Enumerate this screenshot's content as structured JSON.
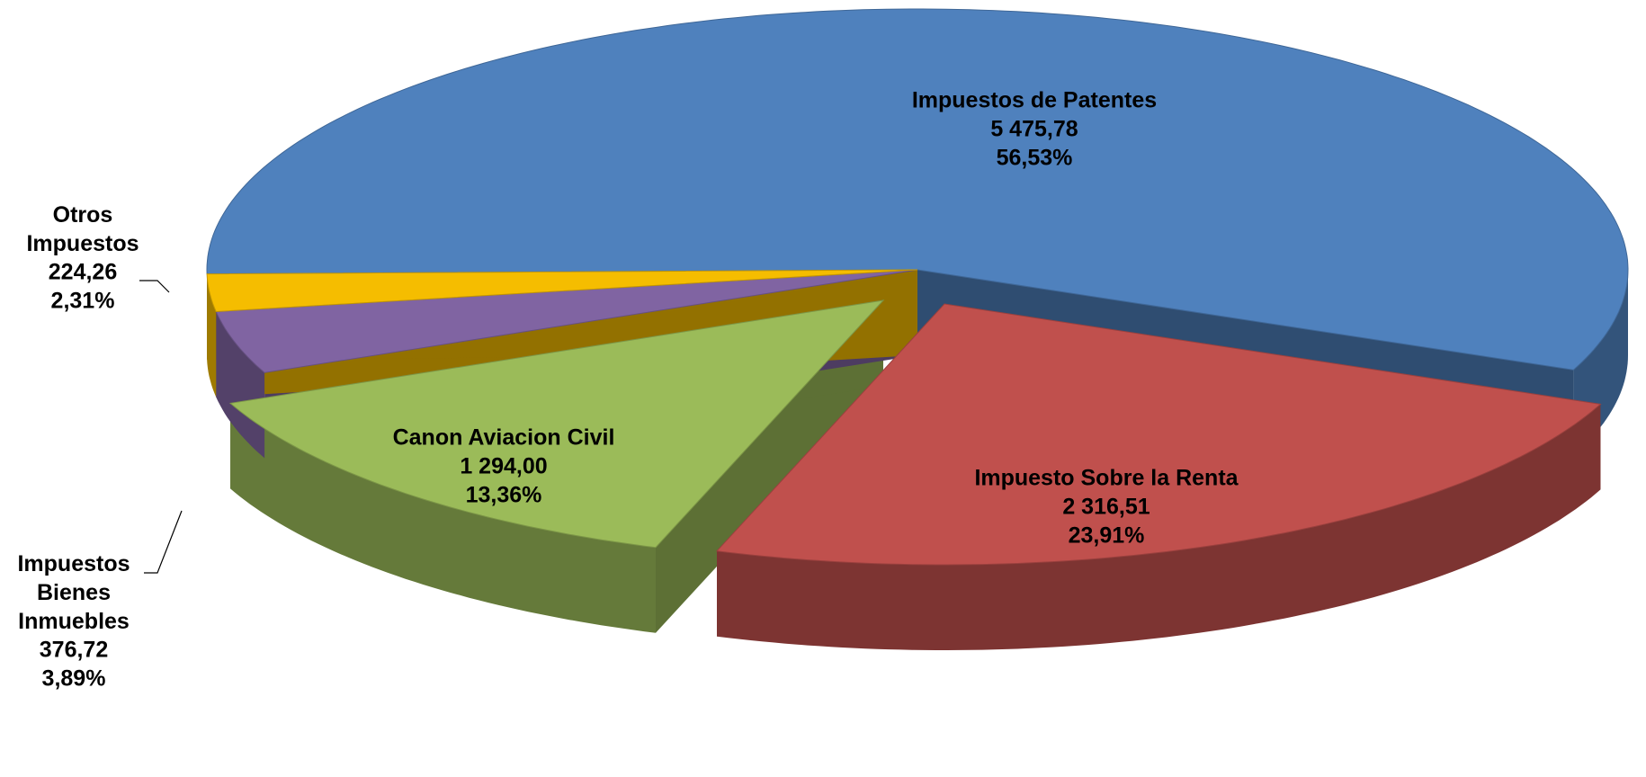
{
  "chart_data": {
    "type": "pie3d",
    "categories": [
      "Impuestos de Patentes",
      "Impuesto Sobre la Renta",
      "Canon Aviacion Civil",
      "Impuestos Bienes Inmuebles",
      "Otros Impuestos"
    ],
    "values": [
      5475.78,
      2316.51,
      1294.0,
      376.72,
      224.26
    ],
    "value_labels": [
      "5 475,78",
      "2 316,51",
      "1 294,00",
      "376,72",
      "224,26"
    ],
    "percents": [
      56.53,
      23.91,
      13.36,
      3.89,
      2.31
    ],
    "percent_labels": [
      "56,53%",
      "23,91%",
      "13,36%",
      "3,89%",
      "2,31%"
    ],
    "colors": [
      "#4f81bd",
      "#c0504d",
      "#9bbb59",
      "#8064a2",
      "#f5bd00"
    ]
  }
}
